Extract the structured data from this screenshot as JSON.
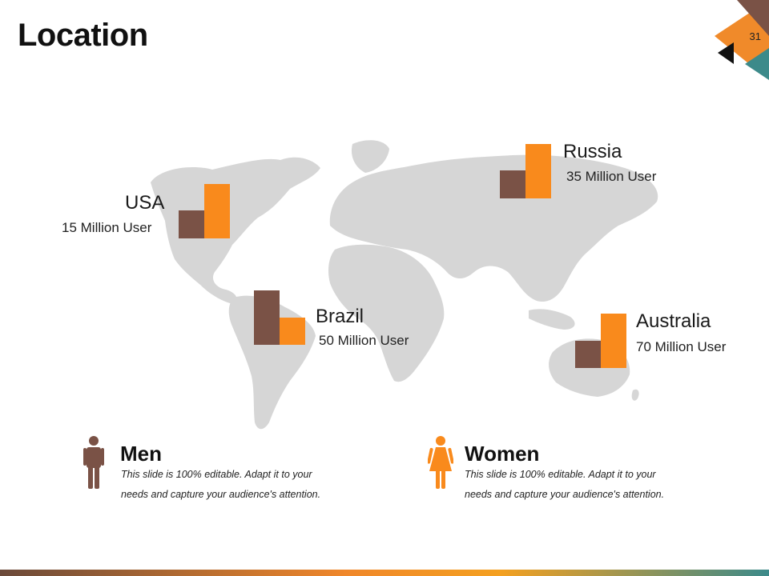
{
  "slide": {
    "title": "Location",
    "page_number": "31"
  },
  "colors": {
    "brown": "#7a5246",
    "orange": "#f98a1c",
    "map_gray": "#d6d6d6"
  },
  "countries": [
    {
      "name": "USA",
      "users": "15 Million User"
    },
    {
      "name": "Russia",
      "users": "35 Million User"
    },
    {
      "name": "Brazil",
      "users": "50 Million User"
    },
    {
      "name": "Australia",
      "users": "70 Million User"
    }
  ],
  "genders": {
    "men": {
      "title": "Men",
      "line1": "This slide is 100% editable. Adapt it to your",
      "line2": "needs and capture your audience's attention.",
      "icon": "man-icon"
    },
    "women": {
      "title": "Women",
      "line1": "This slide is 100% editable. Adapt it to your",
      "line2": "needs and capture your audience's attention.",
      "icon": "woman-icon"
    }
  }
}
